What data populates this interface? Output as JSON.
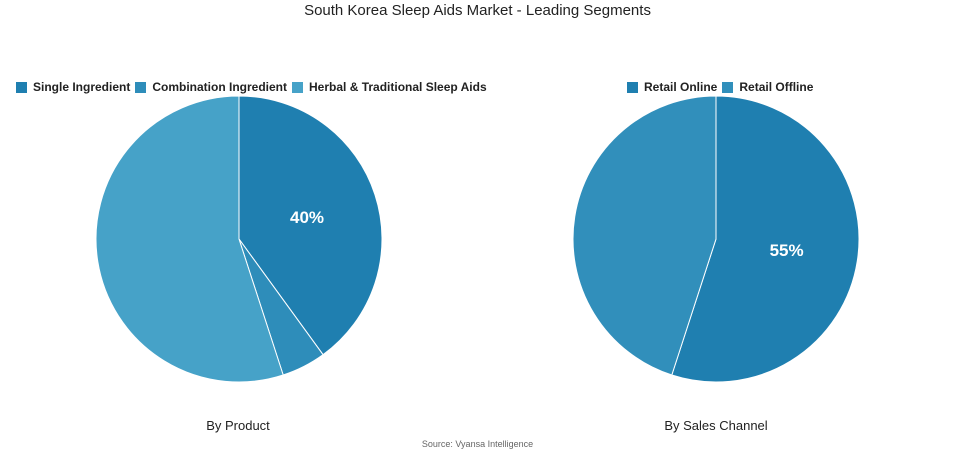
{
  "title": "South Korea Sleep Aids Market - Leading Segments",
  "source": "Source: Vyansa Intelligence",
  "chart_data": [
    {
      "type": "pie",
      "caption": "By Product",
      "legend_position": "top",
      "categories": [
        "Single Ingredient",
        "Combination Ingredient",
        "Herbal & Traditional Sleep Aids"
      ],
      "values": [
        40,
        5,
        55
      ],
      "colors": [
        "#1f7fb0",
        "#2e8dba",
        "#46a2c8"
      ],
      "data_labels": [
        "40%",
        "",
        ""
      ]
    },
    {
      "type": "pie",
      "caption": "By Sales Channel",
      "legend_position": "top",
      "categories": [
        "Retail Online",
        "Retail Offline"
      ],
      "values": [
        55,
        45
      ],
      "colors": [
        "#1f7fb0",
        "#318fbb"
      ],
      "data_labels": [
        "55%",
        ""
      ]
    }
  ]
}
